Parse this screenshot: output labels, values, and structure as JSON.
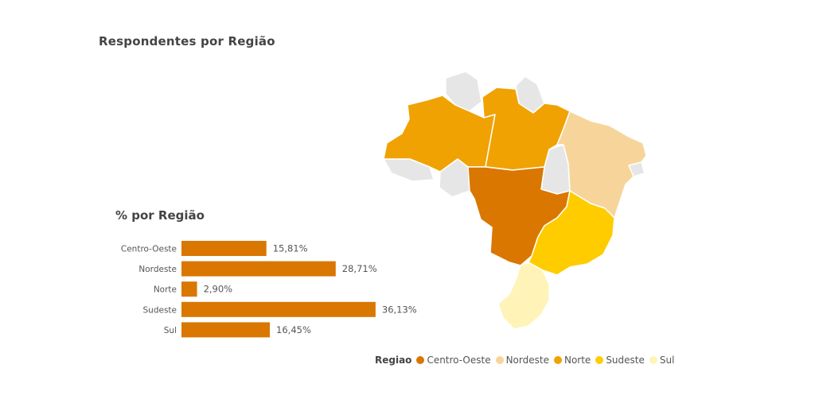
{
  "page": {
    "title": "Respondentes por Região",
    "bar_title": "% por Região"
  },
  "chart_data": [
    {
      "type": "bar",
      "orientation": "horizontal",
      "title": "% por Região",
      "categories": [
        "Centro-Oeste",
        "Nordeste",
        "Norte",
        "Sudeste",
        "Sul"
      ],
      "values": [
        15.81,
        28.71,
        2.9,
        36.13,
        16.45
      ],
      "value_labels": [
        "15,81%",
        "28,71%",
        "2,90%",
        "36,13%",
        "16,45%"
      ],
      "unit": "%",
      "xlim": [
        0,
        40
      ],
      "bar_color": "#D97700",
      "grid": false
    },
    {
      "type": "map",
      "title": "Respondentes por Região",
      "regions": [
        "Centro-Oeste",
        "Nordeste",
        "Norte",
        "Sudeste",
        "Sul"
      ],
      "legend": {
        "title": "Regiao",
        "placement": "bottom",
        "items": [
          {
            "label": "Centro-Oeste",
            "color": "#D97700"
          },
          {
            "label": "Nordeste",
            "color": "#F7D59A"
          },
          {
            "label": "Norte",
            "color": "#F0A202"
          },
          {
            "label": "Sudeste",
            "color": "#FFCC00"
          },
          {
            "label": "Sul",
            "color": "#FFF3B8"
          }
        ]
      },
      "no_data_color": "#E6E6E6"
    }
  ]
}
